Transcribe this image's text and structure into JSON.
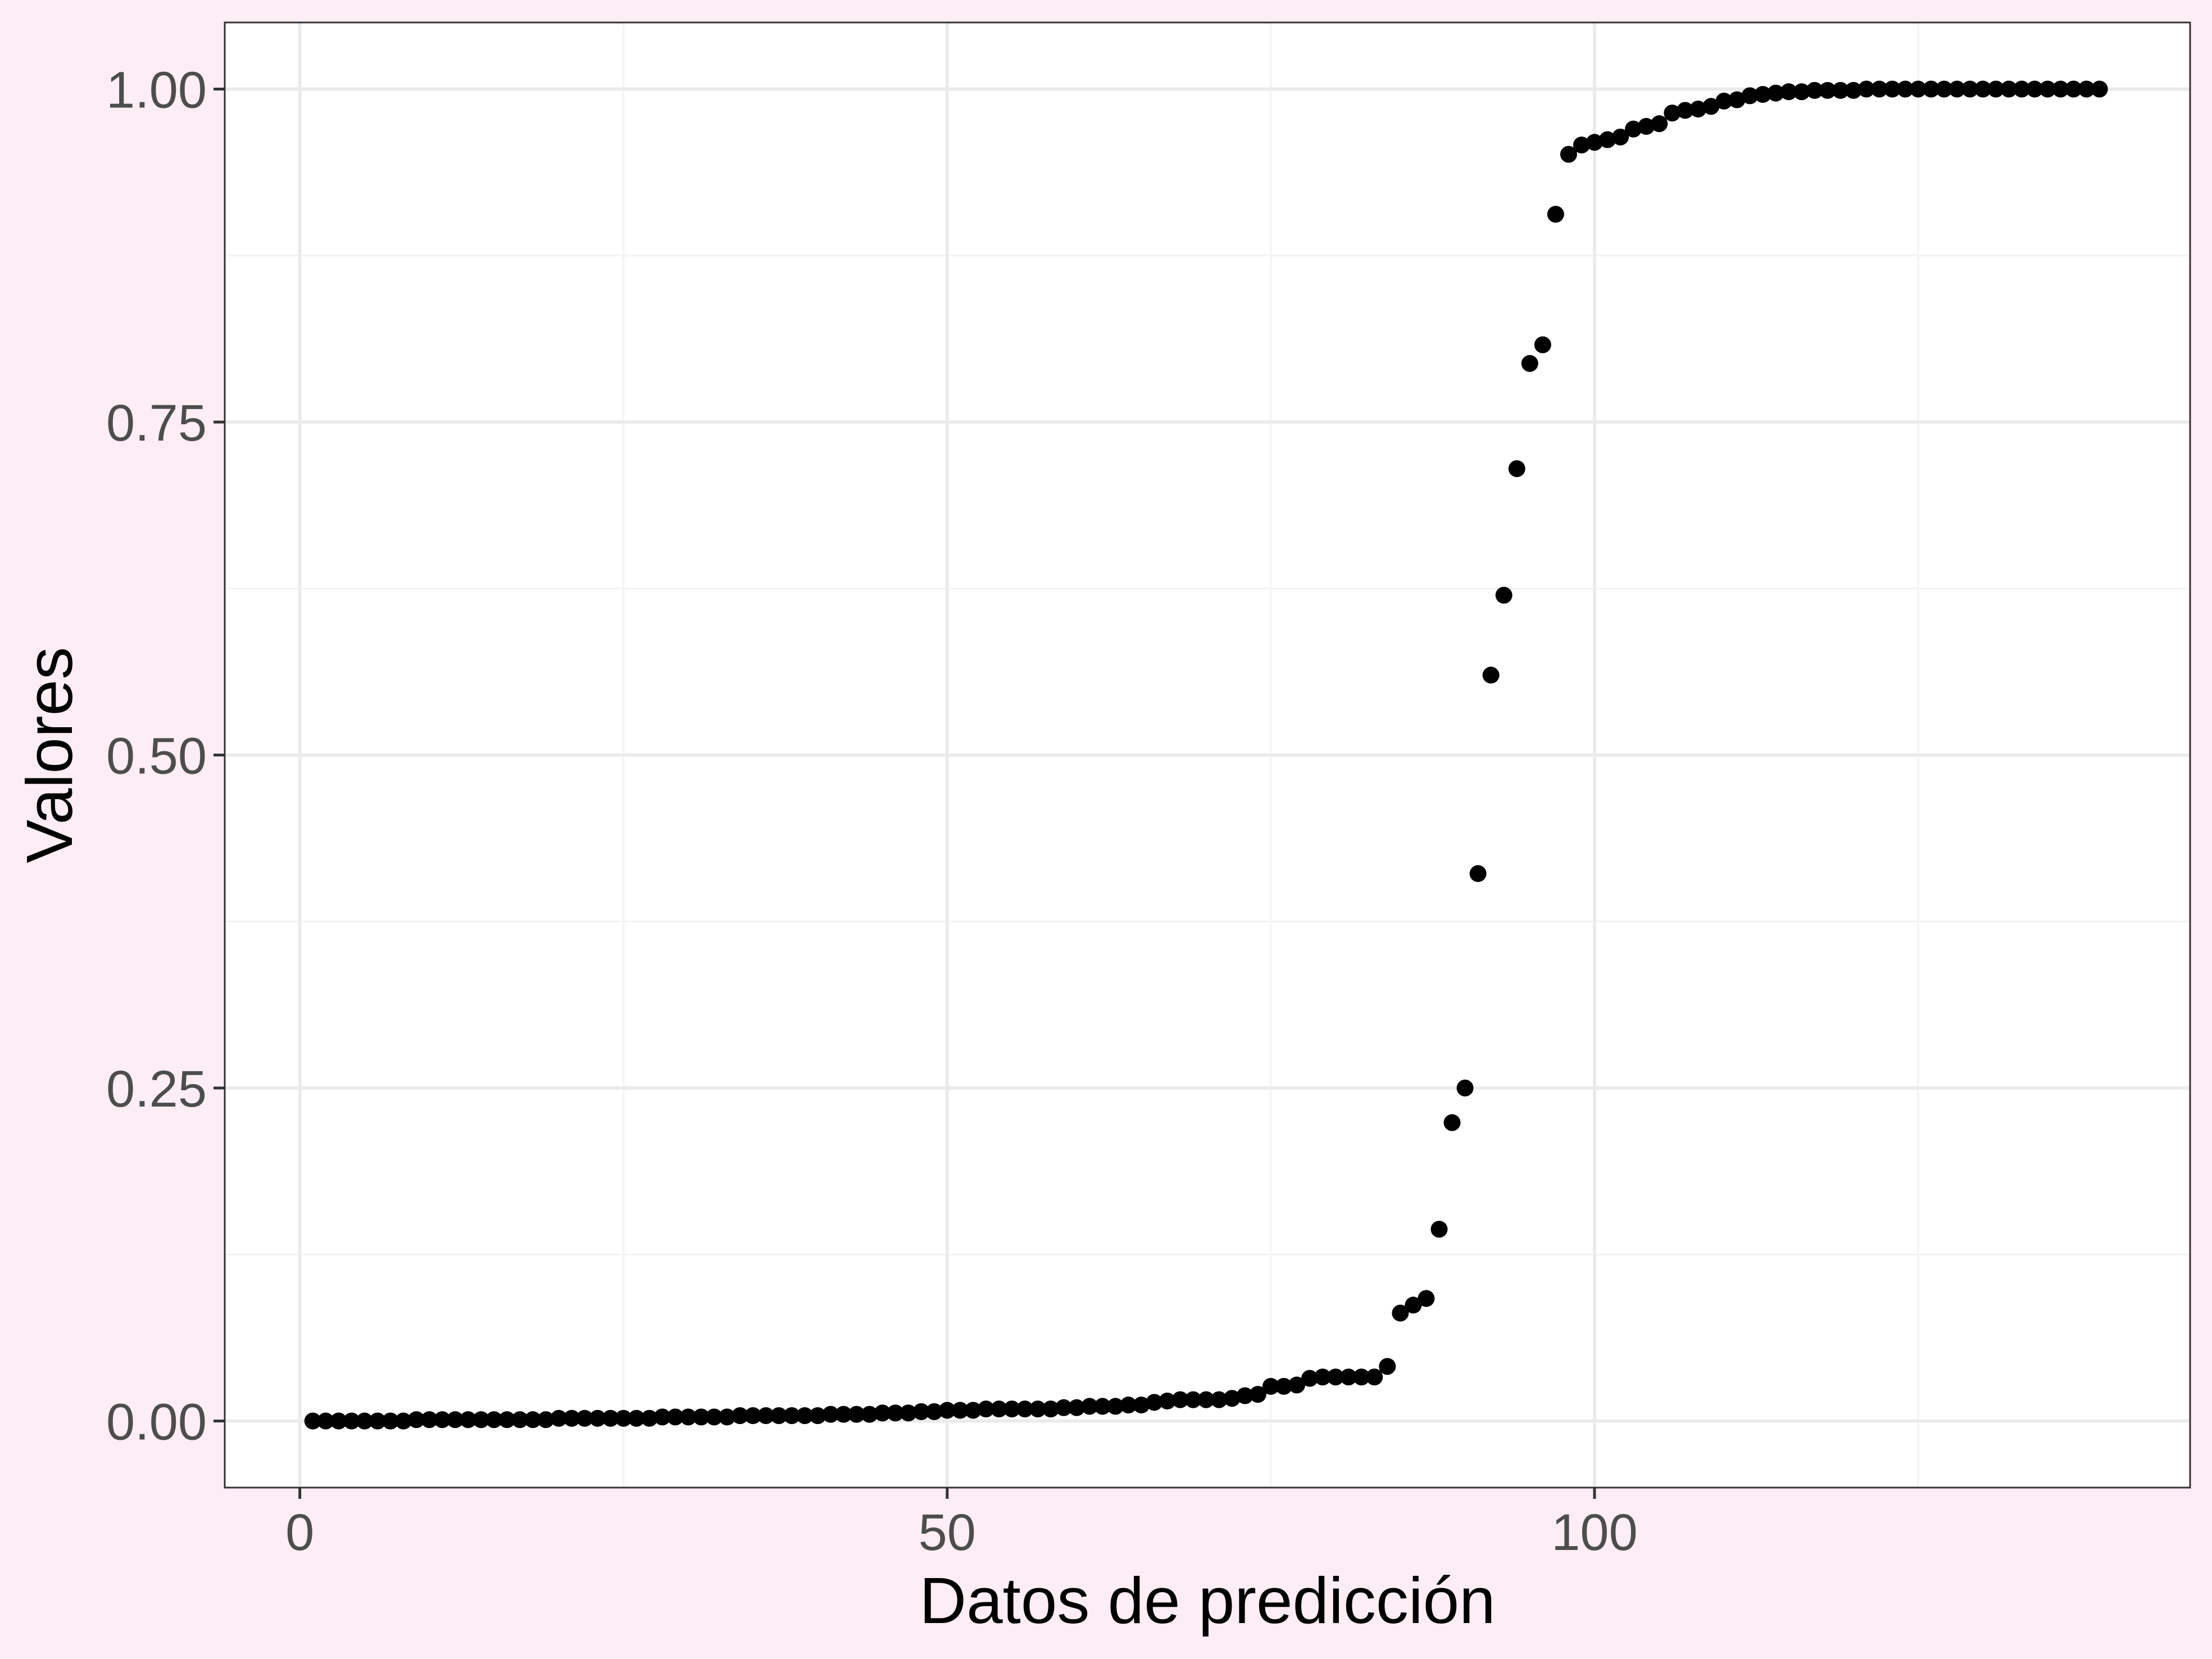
{
  "colors": {
    "background": "#fdedf5",
    "panel": "#ffffff",
    "grid_major": "#ebebeb",
    "grid_minor": "#f4f4f4",
    "panel_border": "#333333",
    "point": "#000000",
    "tick_text": "#4d4d4d",
    "title_text": "#000000"
  },
  "chart_data": {
    "type": "scatter",
    "title": "",
    "xlabel": "Datos de predicción",
    "ylabel": "Valores",
    "xlim": [
      -5.8,
      146
    ],
    "ylim": [
      -0.05,
      1.05
    ],
    "x_ticks": [
      0,
      50,
      100
    ],
    "x_tick_labels": [
      "0",
      "50",
      "100"
    ],
    "y_ticks": [
      0,
      0.25,
      0.5,
      0.75,
      1
    ],
    "y_tick_labels": [
      "0.00",
      "0.25",
      "0.50",
      "0.75",
      "1.00"
    ],
    "grid": true,
    "legend": "none",
    "series": [
      {
        "x": [
          1,
          2,
          3,
          4,
          5,
          6,
          7,
          8,
          9,
          10,
          11,
          12,
          13,
          14,
          15,
          16,
          17,
          18,
          19,
          20,
          21,
          22,
          23,
          24,
          25,
          26,
          27,
          28,
          29,
          30,
          31,
          32,
          33,
          34,
          35,
          36,
          37,
          38,
          39,
          40,
          41,
          42,
          43,
          44,
          45,
          46,
          47,
          48,
          49,
          50,
          51,
          52,
          53,
          54,
          55,
          56,
          57,
          58,
          59,
          60,
          61,
          62,
          63,
          64,
          65,
          66,
          67,
          68,
          69,
          70,
          71,
          72,
          73,
          74,
          75,
          76,
          77,
          78,
          79,
          80,
          81,
          82,
          83,
          84,
          85,
          86,
          87,
          88,
          89,
          90,
          91,
          92,
          93,
          94,
          95,
          96,
          97,
          98,
          99,
          100,
          101,
          102,
          103,
          104,
          105,
          106,
          107,
          108,
          109,
          110,
          111,
          112,
          113,
          114,
          115,
          116,
          117,
          118,
          119,
          120,
          121,
          122,
          123,
          124,
          125,
          126,
          127,
          128,
          129,
          130,
          131,
          132,
          133,
          134,
          135,
          136,
          137,
          138,
          139
        ],
        "y": [
          0.0,
          0.0,
          0.0,
          0.0,
          0.0,
          0.0,
          0.0,
          0.0,
          0.001,
          0.001,
          0.001,
          0.001,
          0.001,
          0.001,
          0.001,
          0.001,
          0.001,
          0.001,
          0.001,
          0.002,
          0.002,
          0.002,
          0.002,
          0.002,
          0.002,
          0.002,
          0.002,
          0.003,
          0.003,
          0.003,
          0.003,
          0.003,
          0.003,
          0.004,
          0.004,
          0.004,
          0.004,
          0.004,
          0.004,
          0.004,
          0.005,
          0.005,
          0.005,
          0.005,
          0.006,
          0.006,
          0.006,
          0.007,
          0.007,
          0.008,
          0.008,
          0.008,
          0.009,
          0.009,
          0.009,
          0.009,
          0.009,
          0.009,
          0.01,
          0.01,
          0.011,
          0.011,
          0.011,
          0.012,
          0.012,
          0.014,
          0.015,
          0.016,
          0.016,
          0.016,
          0.016,
          0.017,
          0.019,
          0.02,
          0.026,
          0.026,
          0.027,
          0.032,
          0.033,
          0.033,
          0.033,
          0.033,
          0.033,
          0.041,
          0.081,
          0.087,
          0.092,
          0.144,
          0.224,
          0.25,
          0.411,
          0.56,
          0.62,
          0.715,
          0.794,
          0.808,
          0.906,
          0.951,
          0.958,
          0.96,
          0.962,
          0.964,
          0.97,
          0.972,
          0.974,
          0.982,
          0.984,
          0.985,
          0.987,
          0.991,
          0.992,
          0.995,
          0.996,
          0.997,
          0.998,
          0.998,
          0.999,
          0.999,
          0.999,
          0.999,
          1.0,
          1.0,
          1.0,
          1.0,
          1.0,
          1.0,
          1.0,
          1.0,
          1.0,
          1.0,
          1.0,
          1.0,
          1.0,
          1.0,
          1.0,
          1.0,
          1.0,
          1.0,
          1.0
        ]
      }
    ]
  }
}
